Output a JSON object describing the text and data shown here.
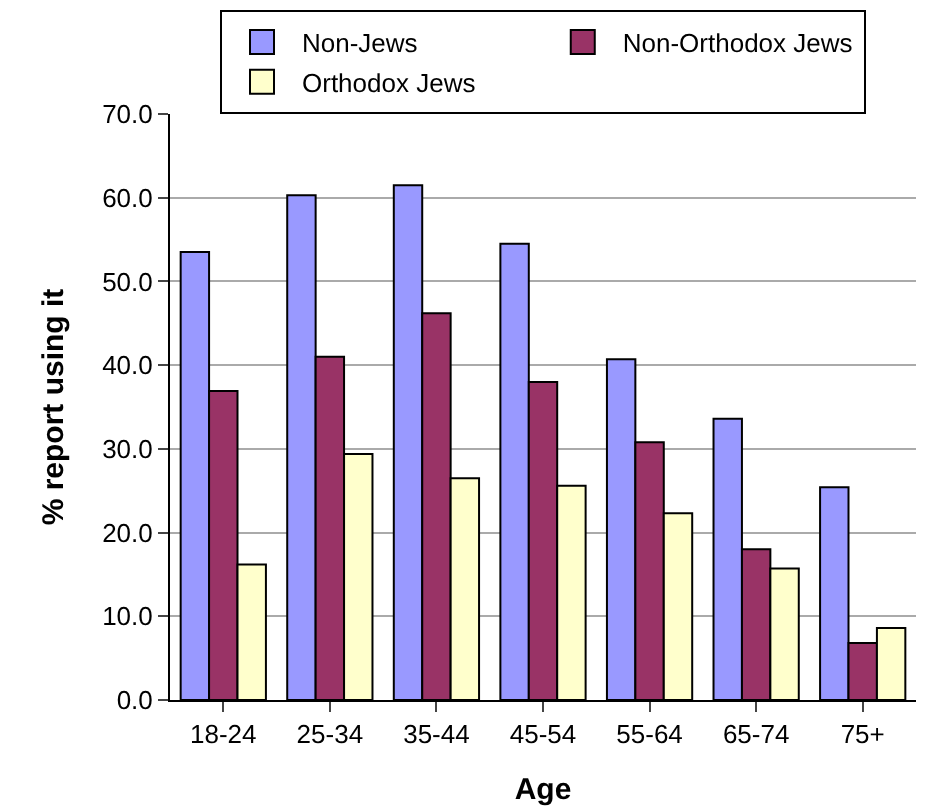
{
  "chart_data": {
    "type": "bar",
    "xlabel": "Age",
    "ylabel": "% report using it",
    "categories": [
      "18-24",
      "25-34",
      "35-44",
      "45-54",
      "55-64",
      "65-74",
      "75+"
    ],
    "series": [
      {
        "name": "Non-Jews",
        "color": "#9999ff",
        "values": [
          53.5,
          60.3,
          61.5,
          54.5,
          40.7,
          33.6,
          25.4
        ]
      },
      {
        "name": "Non-Orthodox Jews",
        "color": "#993366",
        "values": [
          36.9,
          41.0,
          46.2,
          38.0,
          30.8,
          18.0,
          6.8
        ]
      },
      {
        "name": "Orthodox Jews",
        "color": "#ffffcc",
        "values": [
          16.2,
          29.4,
          26.5,
          25.6,
          22.3,
          15.7,
          8.6
        ]
      }
    ],
    "ylim": [
      0,
      70
    ],
    "yticks": [
      {
        "value": 0,
        "label": "0.0"
      },
      {
        "value": 10,
        "label": "10.0"
      },
      {
        "value": 20,
        "label": "20.0"
      },
      {
        "value": 30,
        "label": "30.0"
      },
      {
        "value": 40,
        "label": "40.0"
      },
      {
        "value": 50,
        "label": "50.0"
      },
      {
        "value": 60,
        "label": "60.0"
      },
      {
        "value": 70,
        "label": "70.0"
      }
    ],
    "grid": "y",
    "legend": "top"
  }
}
